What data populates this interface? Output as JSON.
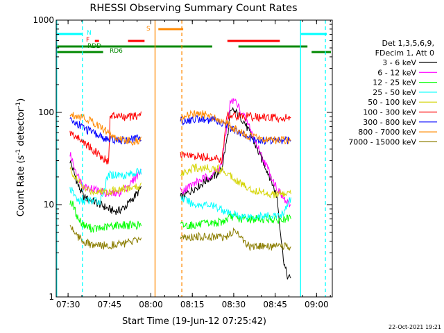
{
  "chart_data": {
    "type": "line",
    "title": "RHESSI Observing Summary Count Rates",
    "xlabel": "Start Time (19-Jun-12 07:25:42)",
    "ylabel_main": "Count Rate (s",
    "ylabel_sup1": "-1",
    "ylabel_mid": " detector",
    "ylabel_sup2": "-1",
    "ylabel_end": ")",
    "footer": "22-Oct-2021 19:21",
    "x_range_minutes": [
      0,
      100
    ],
    "x_start": "07:25:42",
    "y_scale": "log",
    "ylim": [
      1,
      1000
    ],
    "x_ticks": [
      {
        "min": 4.3,
        "label": "07:30"
      },
      {
        "min": 19.3,
        "label": "07:45"
      },
      {
        "min": 34.3,
        "label": "08:00"
      },
      {
        "min": 49.3,
        "label": "08:15"
      },
      {
        "min": 64.3,
        "label": "08:30"
      },
      {
        "min": 79.3,
        "label": "08:45"
      },
      {
        "min": 94.3,
        "label": "09:00"
      }
    ],
    "y_ticks": [
      {
        "value": 1,
        "label": "1"
      },
      {
        "value": 10,
        "label": "10"
      },
      {
        "value": 100,
        "label": "100"
      },
      {
        "value": 1000,
        "label": "1000"
      }
    ],
    "legend_header": [
      "Det 1,3,5,6,9,",
      "FDecim 1, Att 0"
    ],
    "legend_position": "right",
    "series": [
      {
        "name": "3 - 6 keV",
        "color": "#000000",
        "x": [
          5,
          8,
          10,
          13,
          16,
          19,
          21,
          23,
          25,
          27,
          30,
          31,
          45,
          47,
          50,
          53,
          55,
          58,
          60,
          62,
          63,
          64,
          65,
          66,
          68,
          70,
          72,
          74,
          76,
          78,
          80,
          81,
          82,
          83,
          84,
          85
        ],
        "y": [
          30,
          16,
          12,
          11,
          10,
          9,
          8.5,
          8.7,
          9.5,
          11,
          14,
          16,
          12,
          13,
          15,
          17,
          19,
          21,
          25,
          55,
          95,
          105,
          100,
          95,
          80,
          60,
          45,
          33,
          25,
          18,
          12,
          6,
          3,
          2,
          1.6,
          1.6
        ]
      },
      {
        "name": "6 - 12 keV",
        "color": "#ff00ff",
        "x": [
          5,
          8,
          10,
          13,
          16,
          19,
          21,
          23,
          25,
          27,
          30,
          31,
          45,
          47,
          50,
          53,
          55,
          58,
          60,
          62,
          63,
          64,
          65,
          66,
          68,
          70,
          72,
          74,
          76,
          78,
          80,
          82,
          84,
          85
        ],
        "y": [
          35,
          20,
          16,
          15,
          14,
          13,
          13,
          13.5,
          15,
          17,
          22,
          25,
          14,
          15,
          17,
          19,
          20,
          23,
          28,
          80,
          125,
          135,
          130,
          115,
          90,
          70,
          50,
          36,
          27,
          20,
          15,
          12,
          10,
          10
        ]
      },
      {
        "name": "12 - 25 keV",
        "color": "#00ff00",
        "x": [
          5,
          6,
          8,
          10,
          13,
          16,
          19,
          22,
          25,
          28,
          31,
          45,
          50,
          55,
          60,
          62,
          64,
          66,
          68,
          70,
          72,
          74,
          76,
          78,
          80,
          82,
          84,
          85
        ],
        "y": [
          11,
          10,
          7,
          6,
          5.5,
          5.5,
          5.8,
          6,
          6,
          6,
          6,
          6,
          6,
          6.2,
          6.5,
          7,
          7.5,
          7,
          7,
          7,
          7,
          7,
          7,
          7,
          6.8,
          6.8,
          7,
          7
        ]
      },
      {
        "name": "25 - 50 keV",
        "color": "#00ffff",
        "x": [
          5,
          8,
          10,
          13,
          16,
          19,
          22,
          25,
          28,
          31,
          45,
          50,
          55,
          60,
          62,
          64,
          66,
          68,
          70,
          72,
          74,
          76,
          78,
          80,
          82,
          84,
          85
        ],
        "y": [
          15,
          11,
          11,
          11,
          11,
          21,
          21,
          21,
          22,
          23,
          12,
          10,
          10,
          9,
          8,
          8,
          7.5,
          7.5,
          7.5,
          7.5,
          7.5,
          7.5,
          7.5,
          7.5,
          8,
          10,
          12
        ]
      },
      {
        "name": "50 - 100 keV",
        "color": "#d4d400",
        "x": [
          5,
          8,
          10,
          13,
          16,
          19,
          22,
          25,
          28,
          31,
          45,
          50,
          55,
          60,
          62,
          64,
          66,
          68,
          70,
          72,
          74,
          76,
          78,
          80,
          82,
          84,
          85
        ],
        "y": [
          24,
          18,
          15,
          14,
          14,
          14,
          14.5,
          15,
          15,
          16,
          22,
          25,
          25,
          24,
          22,
          20,
          18,
          16,
          15,
          14,
          14,
          13.5,
          13,
          13,
          13,
          13,
          13
        ]
      },
      {
        "name": "100 - 300 keV",
        "color": "#ff0000",
        "x": [
          5,
          7,
          9,
          11,
          13,
          15,
          17,
          19,
          19.5,
          22,
          25,
          28,
          30,
          31,
          45,
          48,
          50,
          54,
          57,
          60,
          62,
          65,
          70,
          75,
          80,
          85
        ],
        "y": [
          60,
          55,
          50,
          45,
          40,
          36,
          32,
          29,
          90,
          92,
          88,
          90,
          92,
          98,
          35,
          34,
          33,
          33,
          32,
          30,
          95,
          92,
          90,
          88,
          87,
          88
        ]
      },
      {
        "name": "300 - 800 keV",
        "color": "#0000ff",
        "x": [
          5,
          8,
          10,
          13,
          16,
          19,
          22,
          25,
          28,
          31,
          45,
          48,
          51,
          54,
          57,
          60,
          62,
          64,
          66,
          68,
          70,
          74,
          78,
          82,
          85
        ],
        "y": [
          82,
          75,
          68,
          60,
          55,
          50,
          50,
          50,
          51,
          55,
          80,
          82,
          85,
          84,
          82,
          78,
          72,
          65,
          60,
          57,
          53,
          50,
          50,
          50,
          50
        ]
      },
      {
        "name": "800 - 7000 keV",
        "color": "#ff8800",
        "x": [
          5,
          8,
          10,
          13,
          16,
          19,
          22,
          25,
          28,
          31,
          45,
          48,
          51,
          54,
          57,
          60,
          62,
          64,
          66,
          68,
          70,
          74,
          78,
          82,
          85
        ],
        "y": [
          95,
          92,
          88,
          80,
          70,
          60,
          52,
          50,
          48,
          50,
          90,
          93,
          97,
          94,
          90,
          82,
          75,
          68,
          62,
          58,
          55,
          52,
          50,
          50,
          50
        ]
      },
      {
        "name": "7000 - 15000 keV",
        "color": "#8b7d00",
        "x": [
          5,
          8,
          10,
          13,
          16,
          19,
          22,
          25,
          28,
          31,
          45,
          50,
          55,
          60,
          62,
          64,
          66,
          68,
          70,
          72,
          74,
          76,
          78,
          80,
          82,
          84,
          85
        ],
        "y": [
          6,
          4.5,
          4,
          3.6,
          3.6,
          3.6,
          3.8,
          3.8,
          4,
          4,
          4.5,
          4.5,
          4.5,
          4.5,
          4.5,
          5,
          5,
          4,
          3.5,
          3.5,
          3.5,
          3.5,
          3.5,
          3.5,
          3.5,
          3.5,
          3.5
        ]
      }
    ],
    "vertical_markers": [
      {
        "min": 0.2,
        "color": "#00ffff",
        "dash": false
      },
      {
        "min": 9.5,
        "color": "#00ffff",
        "dash": true
      },
      {
        "min": 35.8,
        "color": "#ff8800",
        "dash": false
      },
      {
        "min": 45.5,
        "color": "#ff8800",
        "dash": true
      },
      {
        "min": 88.5,
        "color": "#00ffff",
        "dash": false
      },
      {
        "min": 97.5,
        "color": "#00ffff",
        "dash": true
      }
    ],
    "flag_bars": [
      {
        "name": "N",
        "color": "#00ffff",
        "y_offset": 20,
        "segments": [
          [
            0.2,
            9.5
          ],
          [
            88.5,
            98
          ]
        ]
      },
      {
        "name": "S",
        "color": "#ff8800",
        "y_offset": 13,
        "segments": [
          [
            37,
            46
          ]
        ]
      },
      {
        "name": "F",
        "color": "#ff0000",
        "y_offset": 30,
        "segments": [
          [
            14,
            15.5
          ],
          [
            26,
            32
          ],
          [
            62,
            81
          ]
        ]
      },
      {
        "name": "RDD",
        "color": "#00ffff",
        "y_offset": 36,
        "segments": []
      },
      {
        "name": "RD6",
        "color": "#008800",
        "y_offset": 38,
        "segments": [
          [
            0,
            28
          ],
          [
            18,
            46
          ]
        ]
      },
      {
        "name": "",
        "color": "#008800",
        "y_offset": 46,
        "segments": [
          [
            0,
            17
          ]
        ]
      },
      {
        "name": "",
        "color": "#008800",
        "y_offset": 38,
        "segments": [
          [
            46,
            56.5
          ],
          [
            66,
            91
          ]
        ]
      },
      {
        "name": "",
        "color": "#008800",
        "y_offset": 46,
        "segments": [
          [
            92.5,
            99.5
          ]
        ]
      }
    ]
  }
}
